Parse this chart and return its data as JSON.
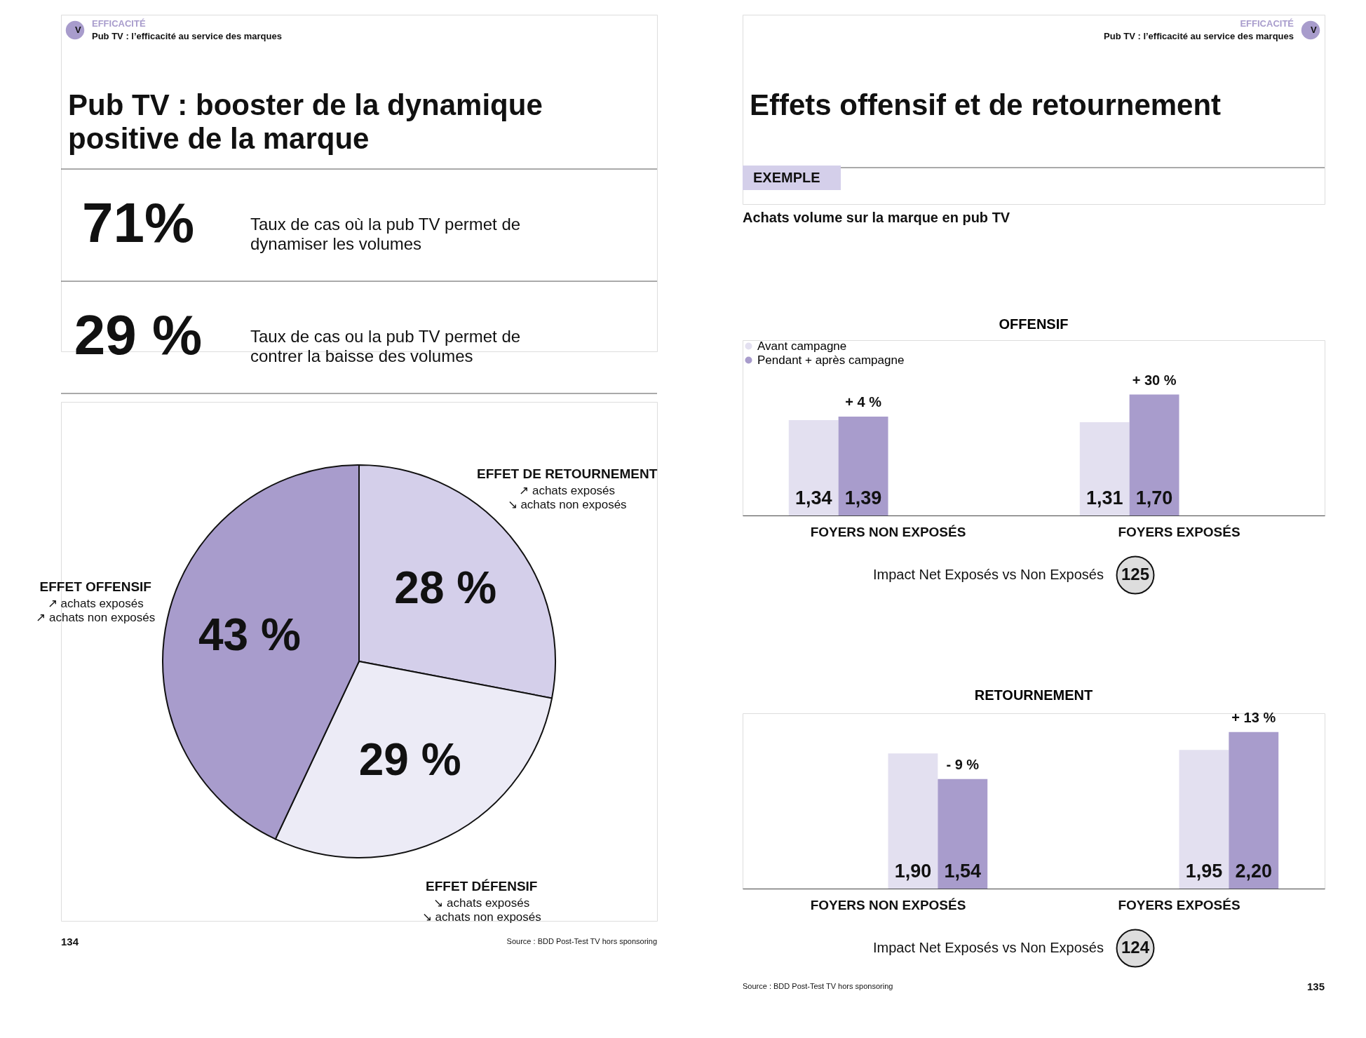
{
  "chart_data": [
    {
      "type": "other",
      "title": "Pub TV : booster de la dynamique positive de la marque",
      "annotations": [
        "V",
        "EFFICACITÉ",
        "Pub TV : l’efficacité au service des marques",
        "71%",
        "Taux de cas où la pub TV permet de dynamiser les volumes",
        "29 %",
        "Taux de cas ou la pub TV permet de contrer la baisse des volumes"
      ]
    },
    {
      "type": "pie",
      "categories": [
        "EFFET DE RETOURNEMENT",
        "EFFET DÉFENSIF",
        "EFFET OFFENSIF"
      ],
      "values": [
        28,
        29,
        43
      ],
      "colors": [
        "#d4cfea",
        "#ecebf6",
        "#a89ccc"
      ],
      "value_labels": [
        "28 %",
        "29 %",
        "43 %"
      ],
      "annotations": [
        "↗ achats exposés",
        "↘ achats non exposés",
        "↘ achats exposés",
        "↘ achats non exposés",
        "↗ achats exposés",
        "↗ achats non exposés",
        "Source : BDD Post-Test TV hors sponsoring",
        "134"
      ]
    },
    {
      "type": "other",
      "title": "Effets offensif et de retournement",
      "annotations": [
        "V",
        "EFFICACITÉ",
        "Pub TV : l’efficacité au service des marques",
        "EXEMPLE",
        "Achats volume sur la marque en pub TV"
      ]
    },
    {
      "type": "bar",
      "title": "OFFENSIF",
      "categories": [
        "FOYERS NON EXPOSÉS",
        "FOYERS EXPOSÉS"
      ],
      "legend": "top left",
      "series": [
        {
          "name": "Avant campagne",
          "color": "#e3e0f0",
          "values": [
            1.34,
            1.31
          ],
          "value_labels": [
            "1,34",
            "1,31"
          ]
        },
        {
          "name": "Pendant + après campagne",
          "color": "#a89ccc",
          "values": [
            1.39,
            1.7
          ],
          "value_labels": [
            "1,39",
            "1,70"
          ]
        }
      ],
      "annotations": [
        "+ 4 %",
        "+ 30 %",
        "Impact Net Exposés vs Non Exposés",
        "125"
      ]
    },
    {
      "type": "bar",
      "title": "RETOURNEMENT",
      "categories": [
        "FOYERS NON EXPOSÉS",
        "FOYERS EXPOSÉS"
      ],
      "series": [
        {
          "color": "#e3e0f0",
          "values": [
            1.9,
            1.95
          ],
          "value_labels": [
            "1,90",
            "1,95"
          ]
        },
        {
          "color": "#a89ccc",
          "values": [
            1.54,
            2.2
          ],
          "value_labels": [
            "1,54",
            "2,20"
          ]
        }
      ],
      "annotations": [
        "- 9 %",
        "+ 13 %",
        "Impact Net Exposés vs Non Exposés",
        "124",
        "Source : BDD Post-Test TV hors sponsoring",
        "135"
      ]
    }
  ]
}
